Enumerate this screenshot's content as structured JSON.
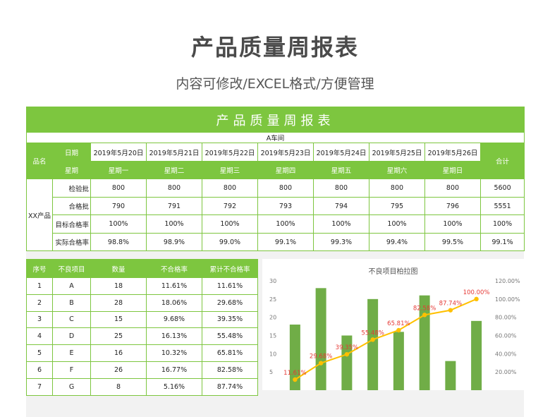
{
  "header": {
    "title": "产品质量周报表",
    "subtitle": "内容可修改/EXCEL格式/方便管理"
  },
  "report": {
    "banner": "产品质量周报表",
    "workshop": "A车间",
    "product_label": "品名",
    "date_label": "日期",
    "weekday_label": "星期",
    "total_label": "合计",
    "product_name": "XX产品",
    "dates": [
      "2019年5月20日",
      "2019年5月21日",
      "2019年5月22日",
      "2019年5月23日",
      "2019年5月24日",
      "2019年5月25日",
      "2019年5月26日"
    ],
    "weekdays": [
      "星期一",
      "星期二",
      "星期三",
      "星期四",
      "星期五",
      "星期六",
      "星期日"
    ],
    "rows": [
      {
        "label": "检验批",
        "values": [
          "800",
          "800",
          "800",
          "800",
          "800",
          "800",
          "800"
        ],
        "total": "5600"
      },
      {
        "label": "合格批",
        "values": [
          "790",
          "791",
          "792",
          "793",
          "794",
          "795",
          "796"
        ],
        "total": "5551"
      },
      {
        "label": "目标合格率",
        "values": [
          "100%",
          "100%",
          "100%",
          "100%",
          "100%",
          "100%",
          "100%"
        ],
        "total": "100%"
      },
      {
        "label": "实际合格率",
        "values": [
          "98.8%",
          "98.9%",
          "99.0%",
          "99.1%",
          "99.3%",
          "99.4%",
          "99.5%"
        ],
        "total": "99.1%"
      }
    ]
  },
  "defects": {
    "headers": [
      "序号",
      "不良项目",
      "数量",
      "不合格率",
      "累计不合格率"
    ],
    "rows": [
      [
        "1",
        "A",
        "18",
        "11.61%",
        "11.61%"
      ],
      [
        "2",
        "B",
        "28",
        "18.06%",
        "29.68%"
      ],
      [
        "3",
        "C",
        "15",
        "9.68%",
        "39.35%"
      ],
      [
        "4",
        "D",
        "25",
        "16.13%",
        "55.48%"
      ],
      [
        "5",
        "E",
        "16",
        "10.32%",
        "65.81%"
      ],
      [
        "6",
        "F",
        "26",
        "16.77%",
        "82.58%"
      ],
      [
        "7",
        "G",
        "8",
        "5.16%",
        "87.74%"
      ]
    ]
  },
  "chart_data": {
    "type": "bar",
    "title": "不良项目柏拉图",
    "categories": [
      "A",
      "B",
      "C",
      "D",
      "E",
      "F",
      "G",
      "H"
    ],
    "series": [
      {
        "values": [
          18,
          28,
          15,
          25,
          16,
          26,
          8,
          19
        ],
        "color": "#70ad47",
        "axis": "left"
      },
      {
        "type": "line",
        "values": [
          11.61,
          29.68,
          39.35,
          55.48,
          65.81,
          82.58,
          87.74,
          100.0
        ],
        "labels": [
          "11.61%",
          "29.68%",
          "39.35%",
          "55.48%",
          "65.81%",
          "82.58%",
          "87.74%",
          "100.00%"
        ],
        "color": "#ffc000",
        "axis": "right"
      }
    ],
    "left_ticks": [
      "5",
      "10",
      "15",
      "20",
      "25",
      "30"
    ],
    "right_ticks": [
      "20.00%",
      "40.00%",
      "60.00%",
      "80.00%",
      "100.00%",
      "120.00%"
    ],
    "ylim_left": [
      0,
      30
    ],
    "ylim_right": [
      0,
      120
    ],
    "label_color": "#e53935"
  }
}
